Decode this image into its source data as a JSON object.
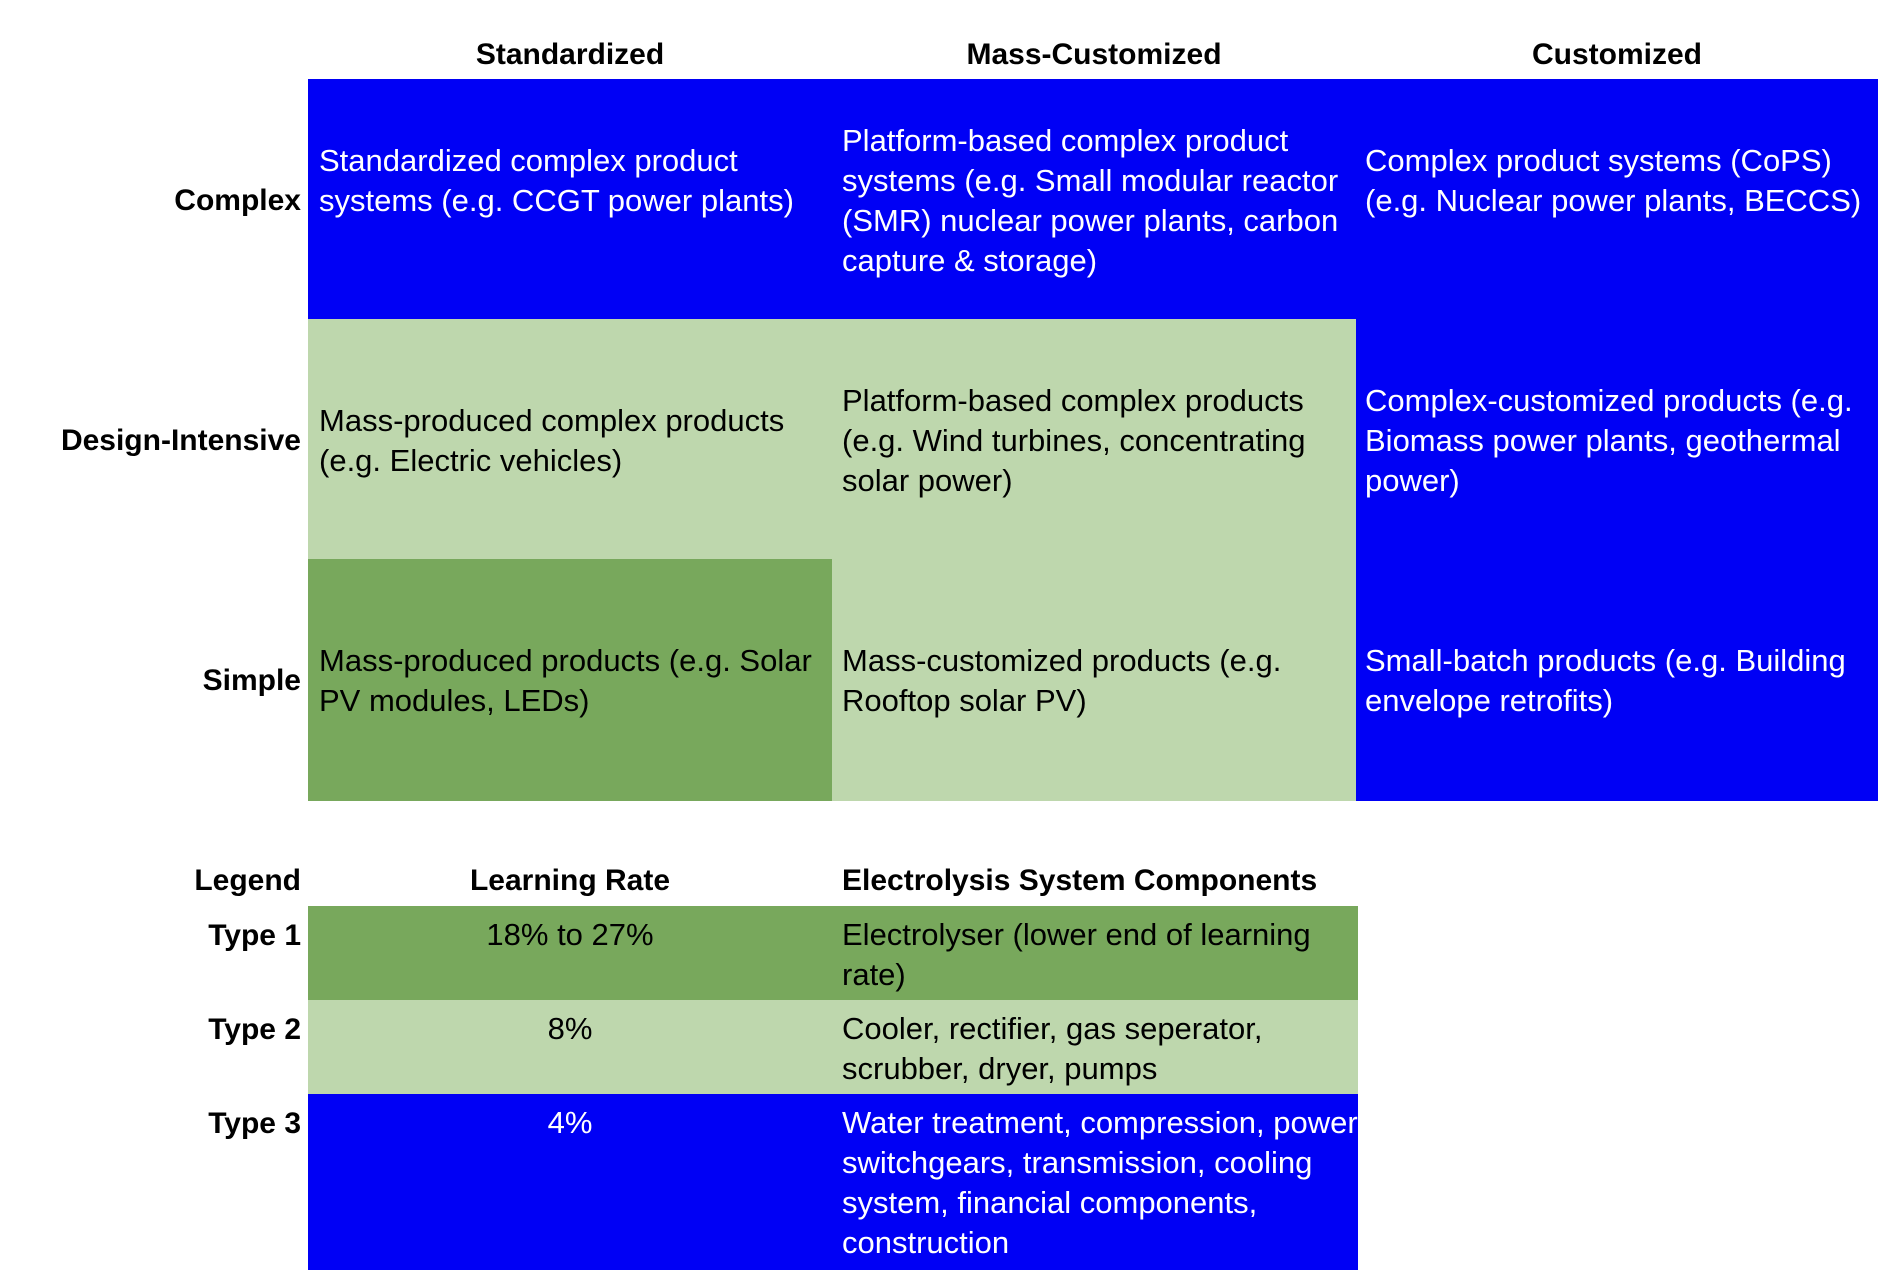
{
  "colors": {
    "type1": "#78a85c",
    "type2": "#bed7ad",
    "type3": "#0000f5"
  },
  "matrix": {
    "columns": [
      "Standardized",
      "Mass-Customized",
      "Customized"
    ],
    "rows": [
      "Complex",
      "Design-Intensive",
      "Simple"
    ],
    "cells": {
      "complex_standardized": "Standardized complex product systems (e.g. CCGT power plants)",
      "complex_mass_customized": "Platform-based complex product systems (e.g. Small modular reactor (SMR) nuclear power plants, carbon capture & storage)",
      "complex_customized": "Complex product systems (CoPS) (e.g. Nuclear power plants, BECCS)",
      "design_standardized": "Mass-produced complex products (e.g. Electric vehicles)",
      "design_mass_customized": "Platform-based complex products (e.g. Wind turbines, concentrating solar power)",
      "design_customized": "Complex-customized products (e.g. Biomass power plants, geothermal power)",
      "simple_standardized": "Mass-produced products (e.g. Solar PV modules, LEDs)",
      "simple_mass_customized": "Mass-customized products (e.g. Rooftop solar PV)",
      "simple_customized": "Small-batch products (e.g. Building envelope retrofits)"
    }
  },
  "legend": {
    "title": "Legend",
    "rate_header": "Learning Rate",
    "components_header": "Electrolysis System Components",
    "rows": [
      {
        "type": "Type 1",
        "rate": "18% to 27%",
        "components": "Electrolyser (lower end of learning rate)"
      },
      {
        "type": "Type 2",
        "rate": "8%",
        "components": "Cooler, rectifier, gas seperator, scrubber, dryer, pumps"
      },
      {
        "type": "Type 3",
        "rate": "4%",
        "components": "Water treatment, compression, power switchgears, transmission, cooling system, financial components, construction"
      }
    ]
  }
}
